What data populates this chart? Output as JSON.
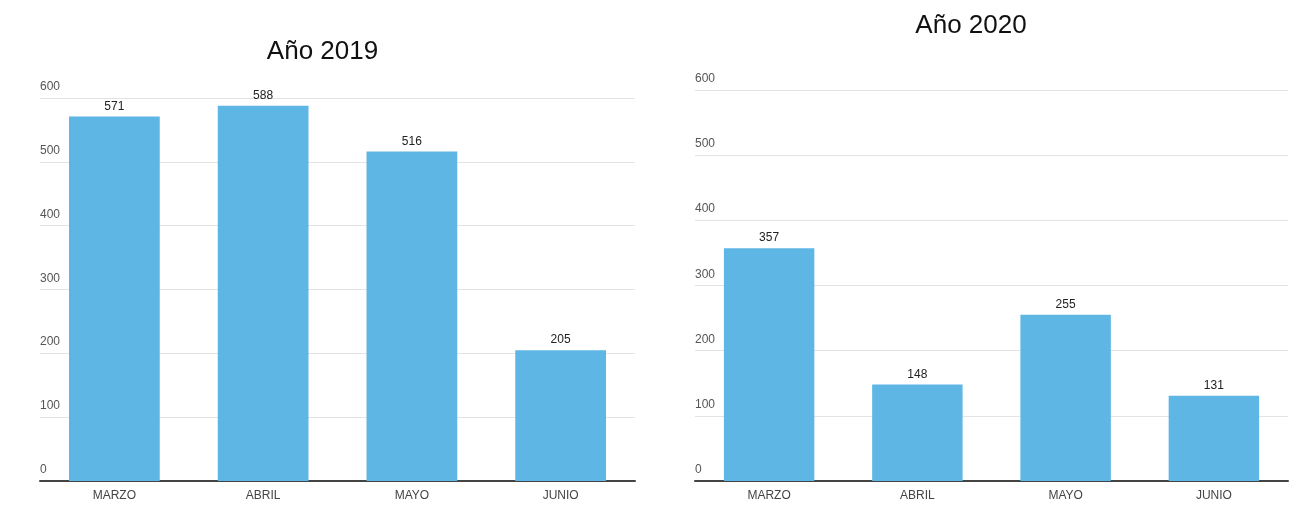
{
  "chart_data": [
    {
      "type": "bar",
      "title": "Año 2019",
      "categories": [
        "MARZO",
        "ABRIL",
        "MAYO",
        "JUNIO"
      ],
      "values": [
        571,
        588,
        516,
        205
      ],
      "color": "#5eb6e4",
      "ylim": [
        0,
        600
      ],
      "yticks": [
        0,
        100,
        200,
        300,
        400,
        500,
        600
      ],
      "grid": "y",
      "data_labels": true
    },
    {
      "type": "bar",
      "title": "Año 2020",
      "categories": [
        "MARZO",
        "ABRIL",
        "MAYO",
        "JUNIO"
      ],
      "values": [
        357,
        148,
        255,
        131
      ],
      "color": "#5eb6e4",
      "ylim": [
        0,
        600
      ],
      "yticks": [
        0,
        100,
        200,
        300,
        400,
        500,
        600
      ],
      "grid": "y",
      "data_labels": true
    }
  ]
}
